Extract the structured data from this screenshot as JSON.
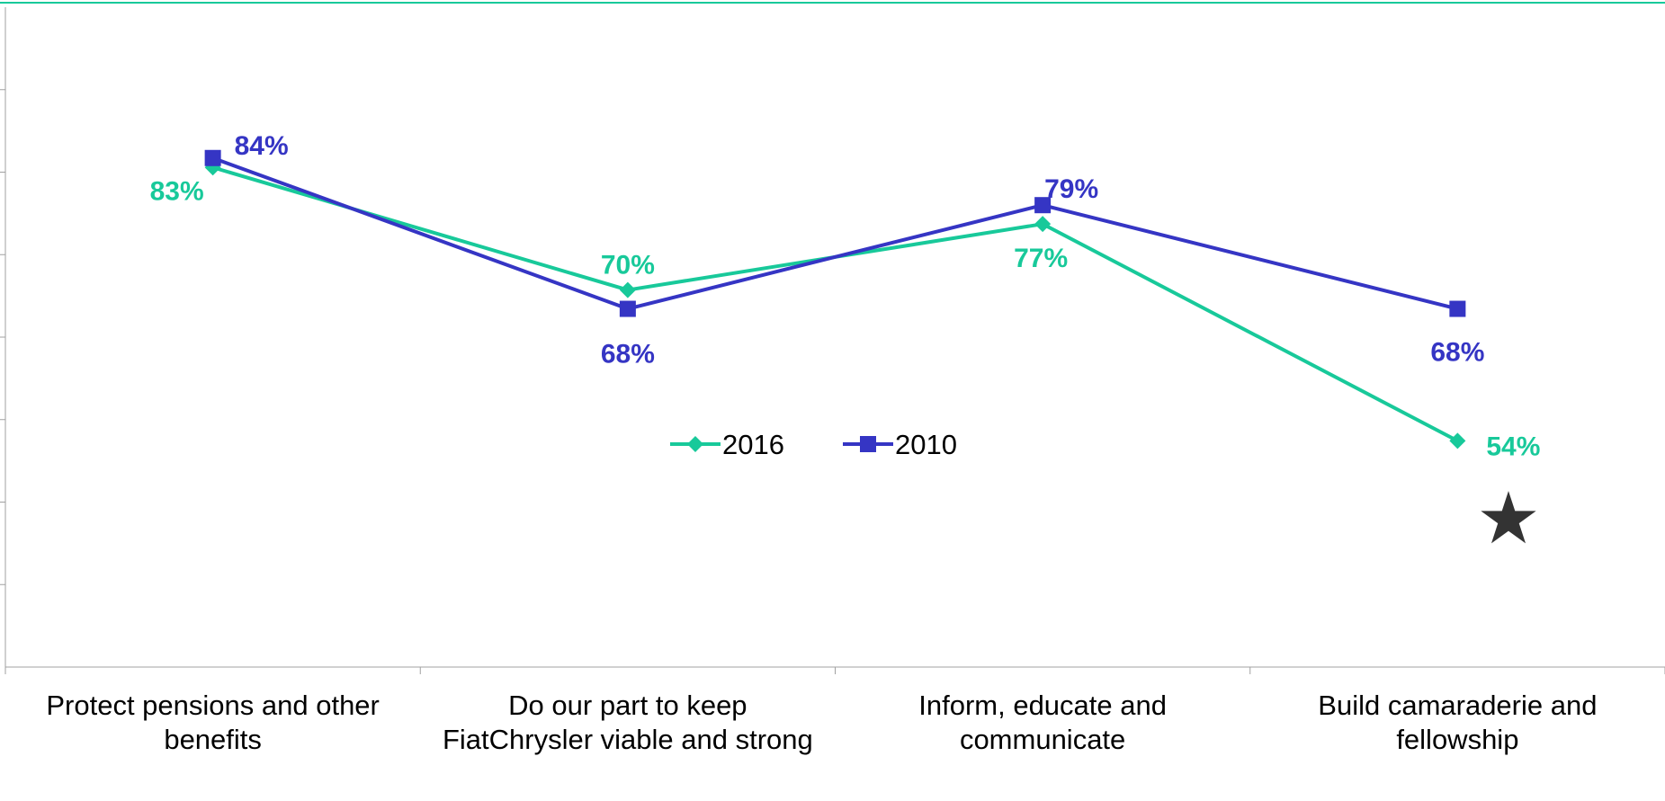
{
  "chart_data": {
    "type": "line",
    "categories": [
      "Protect pensions and other benefits",
      "Do our part to keep FiatChrysler viable and strong",
      "Inform, educate and communicate",
      "Build camaraderie and fellowship"
    ],
    "series": [
      {
        "name": "2016",
        "values": [
          83,
          70,
          77,
          54
        ],
        "labels": [
          "83%",
          "70%",
          "77%",
          "54%"
        ],
        "color": "#18c99a",
        "marker": "diamond"
      },
      {
        "name": "2010",
        "values": [
          84,
          68,
          79,
          68
        ],
        "labels": [
          "84%",
          "68%",
          "79%",
          "68%"
        ],
        "color": "#3535c4",
        "marker": "square"
      }
    ],
    "ylim": [
      30,
      100
    ],
    "grid": false,
    "legend": {
      "placement": "center"
    },
    "annotation": {
      "symbol": "★",
      "color": "#333333"
    },
    "frame_color": "#18c99a"
  }
}
